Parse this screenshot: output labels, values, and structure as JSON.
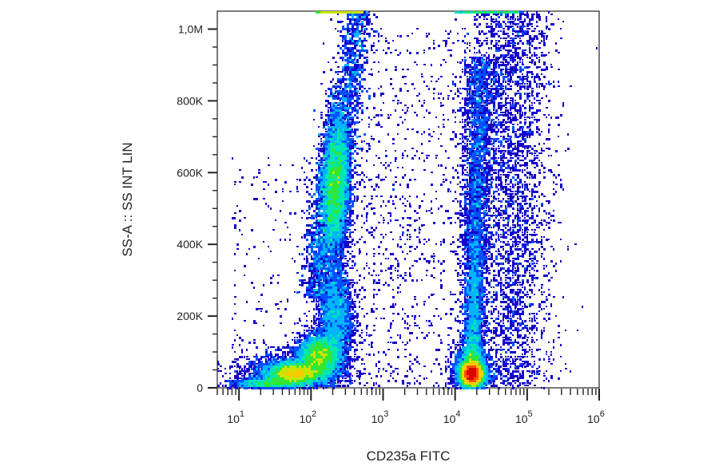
{
  "chart_data": {
    "type": "scatter",
    "subtype": "flow-cytometry-density-dot-plot",
    "title": "",
    "xlabel": "CD235a FITC",
    "ylabel": "SS-A :: SS INT LIN",
    "x_scale": "log",
    "y_scale": "linear",
    "xlim": [
      5,
      1000000
    ],
    "ylim": [
      0,
      1050000
    ],
    "x_ticks": [
      {
        "value": 10,
        "base": "10",
        "exp": "1"
      },
      {
        "value": 100,
        "base": "10",
        "exp": "2"
      },
      {
        "value": 1000,
        "base": "10",
        "exp": "3"
      },
      {
        "value": 10000,
        "base": "10",
        "exp": "4"
      },
      {
        "value": 100000,
        "base": "10",
        "exp": "5"
      },
      {
        "value": 1000000,
        "base": "10",
        "exp": "6"
      }
    ],
    "y_ticks": [
      {
        "value": 0,
        "label": "0"
      },
      {
        "value": 200000,
        "label": "200K"
      },
      {
        "value": 400000,
        "label": "400K"
      },
      {
        "value": 600000,
        "label": "600K"
      },
      {
        "value": 800000,
        "label": "800K"
      },
      {
        "value": 1000000,
        "label": "1,0M"
      }
    ],
    "color_scale": [
      "#1400c8",
      "#0050ff",
      "#00b4ff",
      "#00e6b4",
      "#32e632",
      "#c8e600",
      "#ffc800",
      "#ff5000",
      "#dc0000"
    ],
    "populations": [
      {
        "name": "",
        "x_center": 220,
        "y_center": 560000,
        "density": "high",
        "x_range": [
          120,
          450
        ],
        "y_range": [
          250000,
          1050000
        ]
      },
      {
        "name": "",
        "x_center": 60,
        "y_center": 40000,
        "density": "high",
        "x_range": [
          8,
          200
        ],
        "y_range": [
          5000,
          150000
        ]
      },
      {
        "name": "",
        "x_center": 130,
        "y_center": 90000,
        "density": "high",
        "x_range": [
          60,
          400
        ],
        "y_range": [
          20000,
          250000
        ]
      },
      {
        "name": "",
        "x_center": 17000,
        "y_center": 40000,
        "density": "very-high",
        "x_range": [
          10000,
          40000
        ],
        "y_range": [
          10000,
          200000
        ]
      },
      {
        "name": "",
        "x_center": 20000,
        "y_center": 350000,
        "density": "medium",
        "x_range": [
          12000,
          30000
        ],
        "y_range": [
          100000,
          700000
        ]
      },
      {
        "name": "",
        "x_center": 60000,
        "y_center": 550000,
        "density": "low",
        "x_range": [
          25000,
          200000
        ],
        "y_range": [
          50000,
          1050000
        ]
      }
    ],
    "grid": false,
    "legend": "none"
  }
}
